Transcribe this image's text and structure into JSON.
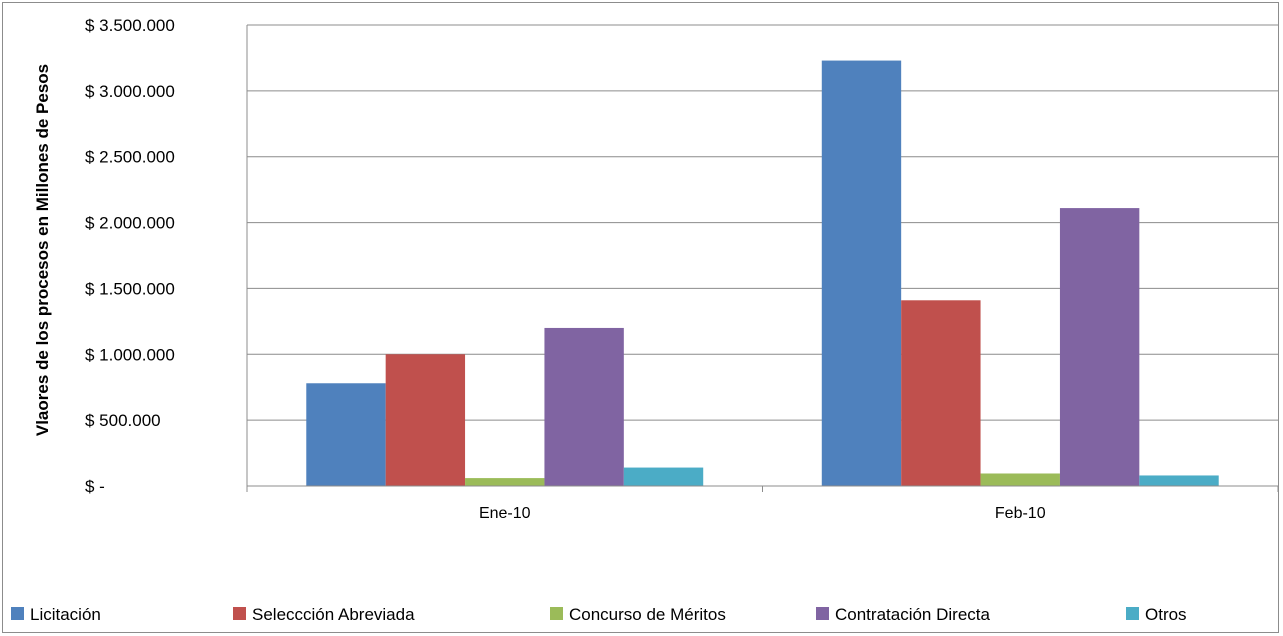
{
  "chart_data": {
    "type": "bar",
    "title": "",
    "xlabel": "",
    "ylabel": "Vlaores de los procesos  en Millones de Pesos",
    "categories": [
      "Ene-10",
      "Feb-10"
    ],
    "ylim": [
      0,
      3500000
    ],
    "yticks": [
      0,
      500000,
      1000000,
      1500000,
      2000000,
      2500000,
      3000000,
      3500000
    ],
    "ytick_labels": [
      "$ -",
      "$ 500.000",
      "$ 1.000.000",
      "$ 1.500.000",
      "$ 2.000.000",
      "$ 2.500.000",
      "$ 3.000.000",
      "$ 3.500.000"
    ],
    "grid": true,
    "legend_position": "bottom",
    "series": [
      {
        "name": "Licitación",
        "color": "#4f81bd",
        "values": [
          780000,
          3230000
        ]
      },
      {
        "name": "Seleccción Abreviada",
        "color": "#c0504d",
        "values": [
          1000000,
          1410000
        ]
      },
      {
        "name": "Concurso de Méritos",
        "color": "#9bbb59",
        "values": [
          60000,
          95000
        ]
      },
      {
        "name": "Contratación Directa",
        "color": "#8064a2",
        "values": [
          1200000,
          2110000
        ]
      },
      {
        "name": "Otros",
        "color": "#4bacc6",
        "values": [
          140000,
          80000
        ]
      }
    ]
  }
}
